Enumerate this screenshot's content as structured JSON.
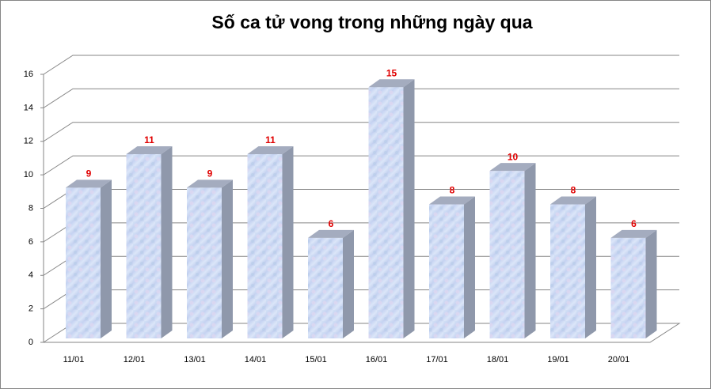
{
  "chart_data": {
    "type": "bar3d",
    "title": "Số ca tử vong trong những ngày qua",
    "categories": [
      "11/01",
      "12/01",
      "13/01",
      "14/01",
      "15/01",
      "16/01",
      "17/01",
      "18/01",
      "19/01",
      "20/01"
    ],
    "values": [
      9,
      11,
      9,
      11,
      6,
      15,
      8,
      10,
      8,
      6
    ],
    "ylim": [
      0,
      16
    ],
    "yticks": [
      0,
      2,
      4,
      6,
      8,
      10,
      12,
      14,
      16
    ],
    "grid": true,
    "color": "#c9d6f0",
    "label_color": "#e00000",
    "title_color": "#c00000"
  }
}
